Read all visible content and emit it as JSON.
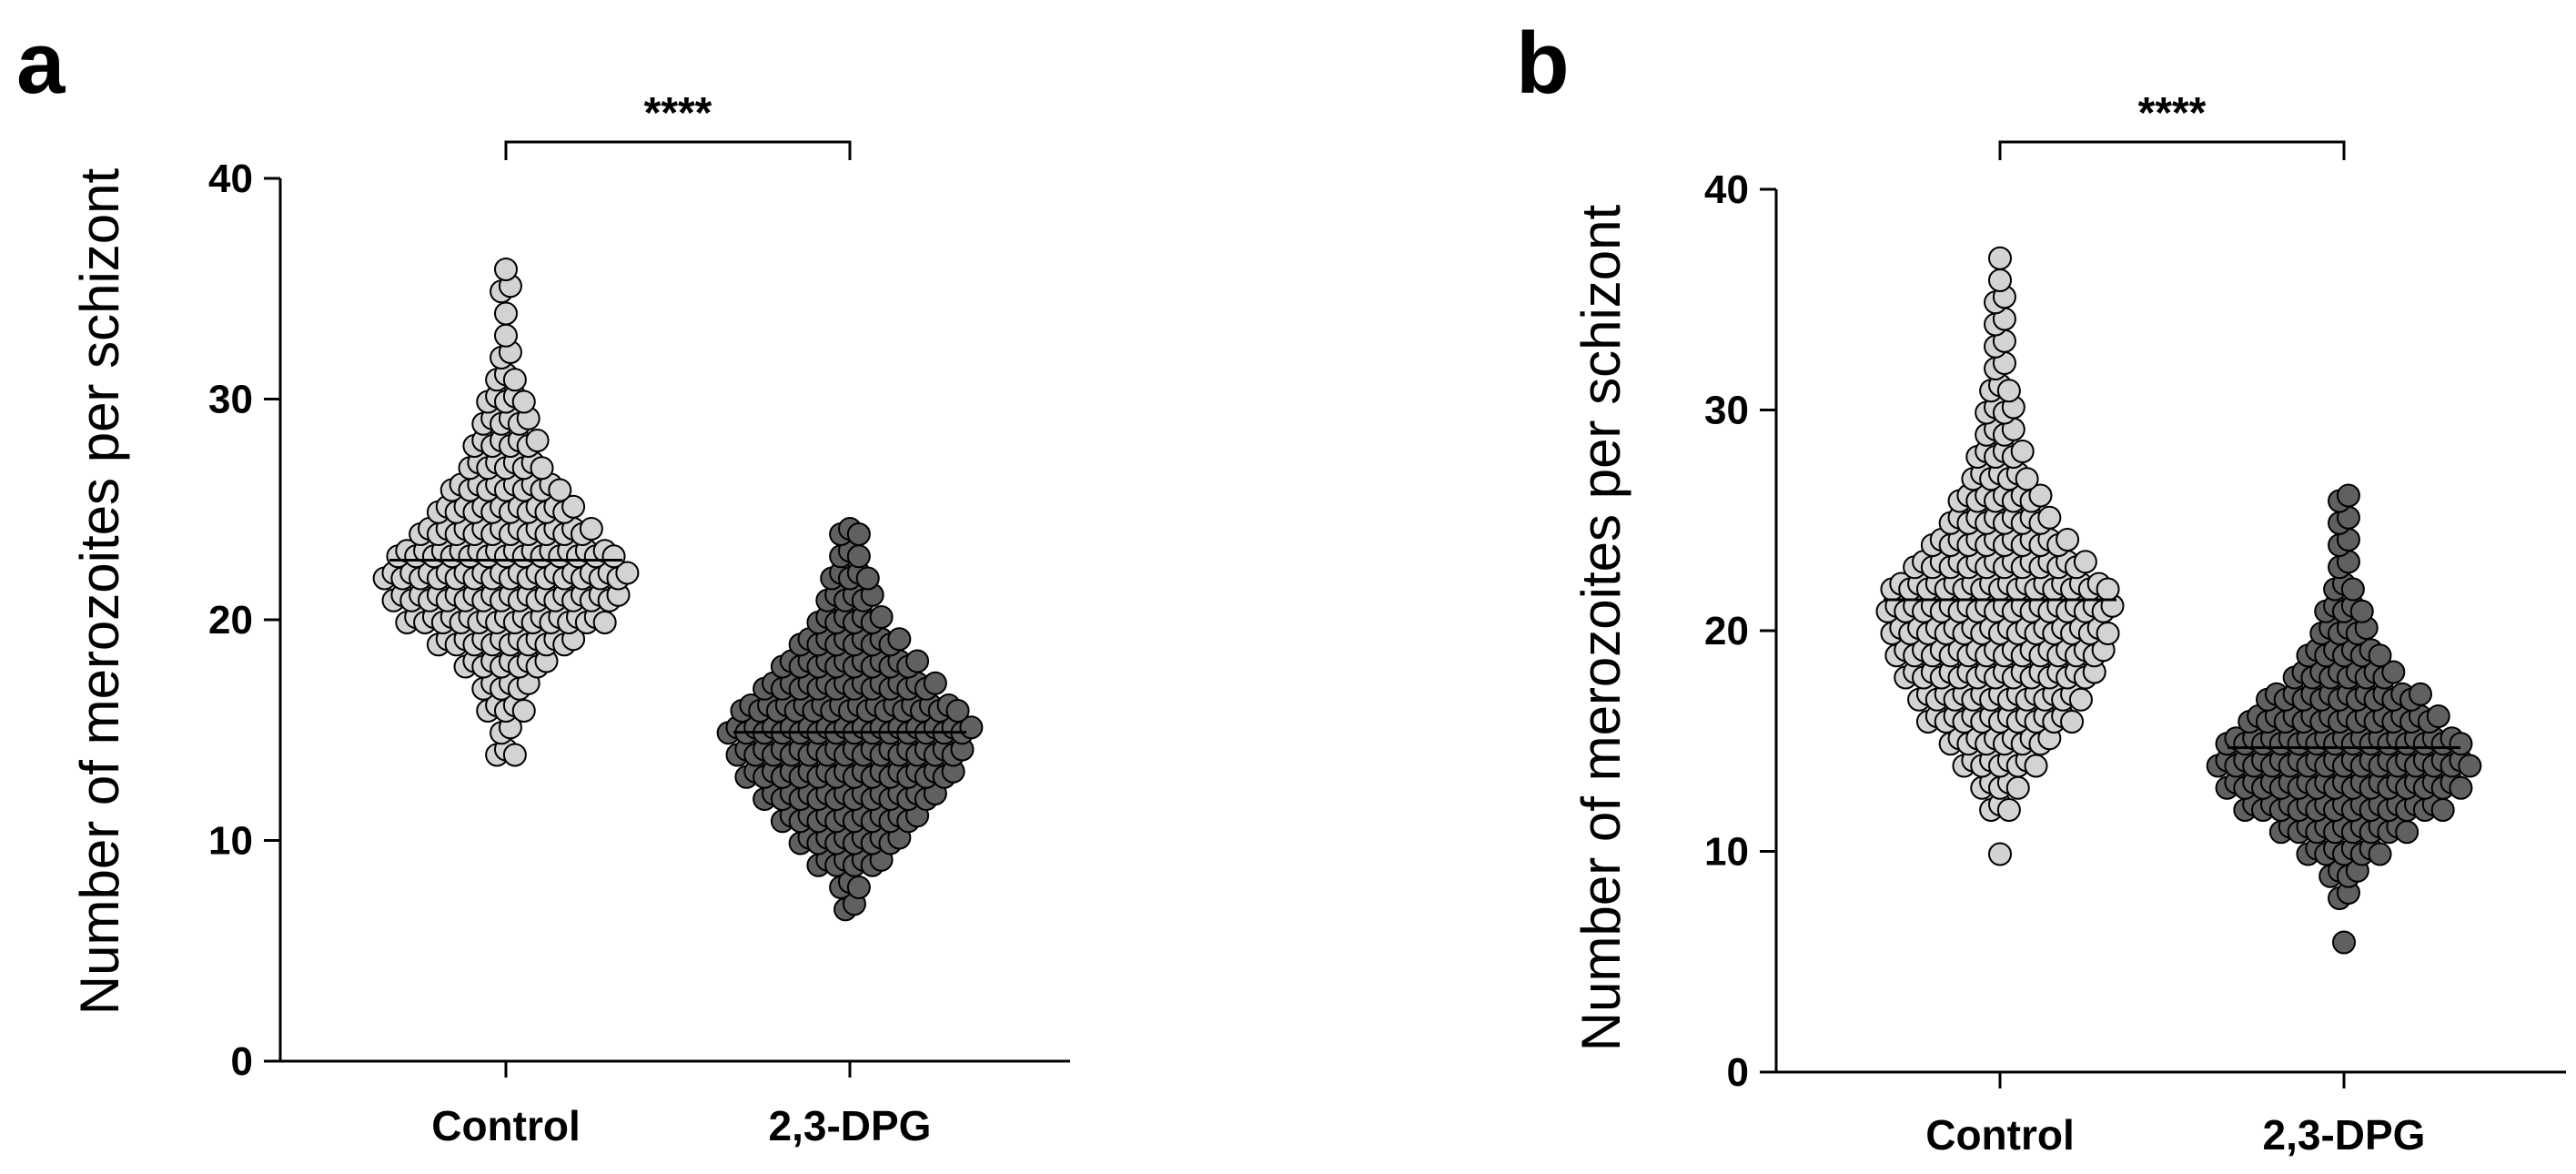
{
  "chart_data": [
    {
      "type": "scatter",
      "panel_label": "a",
      "ylabel": "Number of merozoites per schizont",
      "ylim": [
        0,
        40
      ],
      "yticks": [
        "0",
        "10",
        "20",
        "30",
        "40"
      ],
      "categories": [
        "Control",
        "2,3-DPG"
      ],
      "significance": "****",
      "series": [
        {
          "category": "Control",
          "fill": "#d3d3d3",
          "mean": 22.7,
          "min": 14,
          "max": 36,
          "distribution": {
            "14": 3,
            "15": 2,
            "16": 5,
            "17": 6,
            "18": 10,
            "19": 16,
            "20": 23,
            "21": 26,
            "22": 28,
            "23": 25,
            "24": 20,
            "25": 16,
            "26": 13,
            "27": 9,
            "28": 8,
            "29": 6,
            "30": 5,
            "31": 3,
            "32": 2,
            "33": 1,
            "34": 1,
            "35": 2,
            "36": 1
          }
        },
        {
          "category": "2,3-DPG",
          "fill": "#606060",
          "mean": 14.9,
          "min": 7,
          "max": 24,
          "distribution": {
            "7": 2,
            "8": 3,
            "9": 8,
            "10": 12,
            "11": 16,
            "12": 20,
            "13": 24,
            "14": 26,
            "15": 28,
            "16": 25,
            "17": 20,
            "18": 16,
            "19": 12,
            "20": 8,
            "21": 6,
            "22": 5,
            "23": 3,
            "24": 3
          }
        }
      ]
    },
    {
      "type": "scatter",
      "panel_label": "b",
      "ylabel": "Number of merozoites per schizont",
      "ylim": [
        0,
        40
      ],
      "yticks": [
        "0",
        "10",
        "20",
        "30",
        "40"
      ],
      "categories": [
        "Control",
        "2,3-DPG"
      ],
      "significance": "****",
      "series": [
        {
          "category": "Control",
          "fill": "#d3d3d3",
          "mean": 21.4,
          "min": 10,
          "max": 37,
          "distribution": {
            "10": 1,
            "12": 3,
            "13": 5,
            "14": 9,
            "15": 12,
            "16": 17,
            "17": 19,
            "18": 22,
            "19": 24,
            "20": 25,
            "21": 26,
            "22": 25,
            "23": 20,
            "24": 16,
            "25": 12,
            "26": 10,
            "27": 7,
            "28": 6,
            "29": 4,
            "30": 4,
            "31": 3,
            "32": 2,
            "33": 2,
            "34": 2,
            "35": 2,
            "36": 1,
            "37": 1
          }
        },
        {
          "category": "2,3-DPG",
          "fill": "#606060",
          "mean": 14.7,
          "min": 6,
          "max": 26,
          "distribution": {
            "6": 1,
            "8": 2,
            "9": 4,
            "10": 9,
            "11": 15,
            "12": 23,
            "13": 27,
            "14": 29,
            "15": 27,
            "16": 22,
            "17": 18,
            "18": 12,
            "19": 9,
            "20": 6,
            "21": 5,
            "22": 3,
            "23": 2,
            "24": 2,
            "25": 2,
            "26": 2
          }
        }
      ]
    }
  ]
}
